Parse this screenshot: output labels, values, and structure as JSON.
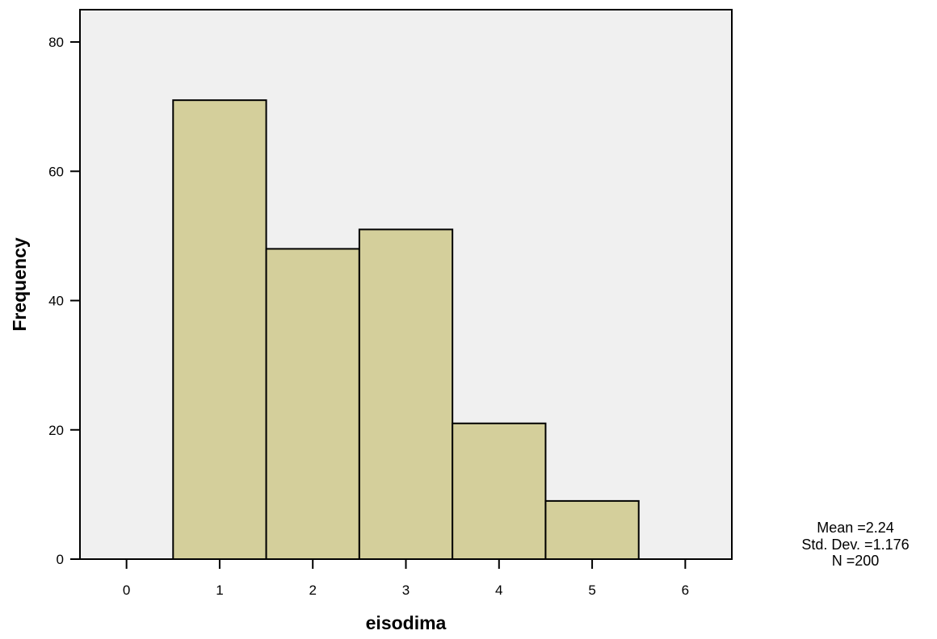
{
  "chart_data": {
    "type": "bar",
    "subtype": "histogram",
    "title": "",
    "xlabel": "eisodima",
    "ylabel": "Frequency",
    "x_ticks": [
      "0",
      "1",
      "2",
      "3",
      "4",
      "5",
      "6"
    ],
    "y_ticks": [
      "0",
      "20",
      "40",
      "60",
      "80"
    ],
    "xlim": [
      -0.5,
      6.5
    ],
    "ylim": [
      0,
      85
    ],
    "bins": [
      {
        "center": 1,
        "value": 71
      },
      {
        "center": 2,
        "value": 48
      },
      {
        "center": 3,
        "value": 51
      },
      {
        "center": 4,
        "value": 21
      },
      {
        "center": 5,
        "value": 9
      }
    ],
    "bin_width": 1,
    "grid": false,
    "legend": "none",
    "stats": {
      "mean": "Mean =2.24",
      "std": "Std. Dev. =1.176",
      "n": "N =200"
    },
    "colors": {
      "plot_background": "#f0f0f0",
      "bar_fill": "#d4cf9b",
      "bar_stroke": "#000000",
      "axis": "#000000"
    }
  }
}
